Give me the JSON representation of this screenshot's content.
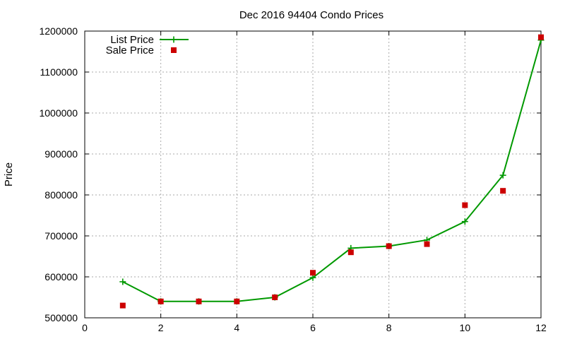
{
  "chart_data": {
    "type": "line",
    "title": "Dec 2016 94404 Condo Prices",
    "xlabel": "",
    "ylabel": "Price",
    "xlim": [
      0,
      12
    ],
    "ylim": [
      500000,
      1200000
    ],
    "x_ticks": [
      0,
      2,
      4,
      6,
      8,
      10,
      12
    ],
    "y_ticks": [
      500000,
      600000,
      700000,
      800000,
      900000,
      1000000,
      1100000,
      1200000
    ],
    "grid": true,
    "legend_position": "top-left",
    "series": [
      {
        "name": "List Price",
        "style": "line+plus-marker",
        "color": "#009900",
        "x": [
          1,
          2,
          3,
          4,
          5,
          6,
          7,
          8,
          9,
          10,
          11,
          12
        ],
        "values": [
          588000,
          540000,
          540000,
          540000,
          550000,
          598000,
          670000,
          675000,
          690000,
          735000,
          848000,
          1178000
        ]
      },
      {
        "name": "Sale Price",
        "style": "square-marker",
        "color": "#cc0000",
        "x": [
          1,
          2,
          3,
          4,
          5,
          6,
          7,
          8,
          9,
          10,
          11,
          12
        ],
        "values": [
          530000,
          540000,
          540000,
          540000,
          550000,
          610000,
          660000,
          675000,
          680000,
          775000,
          810000,
          1185000
        ]
      }
    ]
  }
}
